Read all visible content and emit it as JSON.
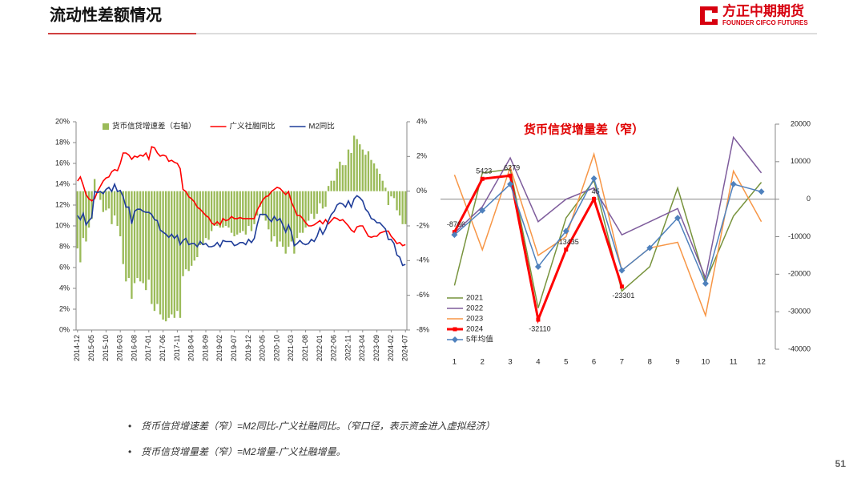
{
  "header": {
    "title": "流动性差额情况",
    "logo": "方正中期期货",
    "logo_sub": "FOUNDER CIFCO FUTURES"
  },
  "chart_data": [
    {
      "type": "bar_line",
      "categories": [
        "2014-12",
        null,
        null,
        null,
        null,
        "2015-05",
        null,
        null,
        null,
        null,
        "2015-10",
        null,
        null,
        null,
        null,
        "2016-03",
        null,
        null,
        null,
        null,
        "2016-08",
        null,
        null,
        null,
        null,
        "2017-01",
        null,
        null,
        null,
        null,
        "2017-06",
        null,
        null,
        null,
        null,
        "2017-11",
        null,
        null,
        null,
        null,
        "2018-04",
        null,
        null,
        null,
        null,
        "2018-09",
        null,
        null,
        null,
        null,
        "2019-02",
        null,
        null,
        null,
        null,
        "2019-07",
        null,
        null,
        null,
        null,
        "2019-12",
        null,
        null,
        null,
        null,
        "2020-05",
        null,
        null,
        null,
        null,
        "2020-10",
        null,
        null,
        null,
        null,
        "2021-03",
        null,
        null,
        null,
        null,
        "2021-08",
        null,
        null,
        null,
        null,
        "2022-01",
        null,
        null,
        null,
        null,
        "2022-06",
        null,
        null,
        null,
        null,
        "2022-11",
        null,
        null,
        null,
        null,
        "2023-04",
        null,
        null,
        null,
        null,
        "2023-09",
        null,
        null,
        null,
        null,
        "2024-02",
        null,
        null,
        null,
        null,
        "2024-07"
      ],
      "series": [
        {
          "name": "货币信贷增速差（右轴）",
          "type": "bar",
          "axis": "y2",
          "color": "#9bbb59",
          "values": [
            -3.3,
            -4.1,
            -2.7,
            -2.9,
            -2.1,
            -1.6,
            0.7,
            -0.1,
            -0.5,
            -1.2,
            -1.1,
            -1.0,
            -1.9,
            -1.4,
            -2.0,
            -2.6,
            -4.2,
            -5.2,
            -5.0,
            -6.2,
            -5.3,
            -5.0,
            -5.2,
            -5.3,
            -5.7,
            -5.1,
            -6.5,
            -6.9,
            -6.5,
            -7.1,
            -7.4,
            -7.5,
            -7.3,
            -7.1,
            -7.3,
            -6.9,
            -7.3,
            -4.9,
            -4.5,
            -4.6,
            -4.3,
            -4.0,
            -3.8,
            -3.1,
            -3.1,
            -2.7,
            -2.8,
            -2.3,
            -2.0,
            -2.0,
            -2.1,
            -2.1,
            -2.0,
            -2.1,
            -2.4,
            -2.6,
            -2.5,
            -2.4,
            -2.3,
            -2.5,
            -2.0,
            -2.3,
            -1.9,
            -1.4,
            -0.9,
            -1.4,
            -1.7,
            -2.2,
            -2.9,
            -2.6,
            -3.2,
            -2.9,
            -3.2,
            -3.6,
            -3.2,
            -2.9,
            -3.6,
            -2.7,
            -2.4,
            -2.4,
            -2.1,
            -1.7,
            -1.3,
            -1.6,
            -1.3,
            -0.7,
            -1.0,
            -0.9,
            0.3,
            0.6,
            0.6,
            1.3,
            1.7,
            1.5,
            1.5,
            2.4,
            2.2,
            3.2,
            3.0,
            2.7,
            2.4,
            2.1,
            2.3,
            1.8,
            1.6,
            1.3,
            1.0,
            0.6,
            0.2,
            -0.8,
            -0.3,
            -0.4,
            -1.1,
            -1.4,
            -1.9,
            -1.9
          ]
        },
        {
          "name": "广义社融同比",
          "type": "line",
          "color": "#ff0000",
          "values": [
            14.3,
            14.7,
            13.9,
            13.0,
            12.6,
            12.4,
            12.6,
            13.3,
            13.8,
            14.3,
            14.6,
            14.7,
            15.2,
            15.4,
            15.3,
            16.0,
            17.0,
            17.0,
            16.8,
            16.4,
            16.7,
            16.6,
            16.8,
            16.7,
            17.0,
            16.4,
            17.6,
            17.5,
            17.0,
            16.7,
            16.8,
            16.7,
            16.2,
            16.3,
            16.1,
            16.0,
            15.5,
            13.5,
            13.3,
            12.8,
            12.6,
            12.3,
            11.8,
            11.6,
            11.3,
            11.0,
            10.8,
            10.3,
            10.1,
            10.4,
            10.1,
            10.7,
            10.5,
            10.6,
            10.9,
            10.7,
            10.7,
            10.8,
            10.7,
            10.7,
            10.7,
            10.7,
            10.7,
            11.5,
            12.0,
            12.5,
            12.8,
            12.9,
            13.3,
            13.5,
            13.7,
            13.6,
            13.3,
            13.0,
            13.3,
            12.3,
            11.7,
            11.0,
            11.0,
            10.7,
            10.3,
            10.0,
            10.0,
            10.1,
            10.3,
            10.5,
            10.2,
            10.6,
            10.2,
            10.5,
            10.8,
            10.7,
            10.5,
            10.6,
            10.3,
            10.0,
            9.6,
            9.4,
            9.9,
            10.0,
            10.0,
            9.5,
            9.0,
            8.9,
            9.0,
            9.0,
            9.3,
            9.4,
            9.5,
            9.5,
            9.0,
            8.7,
            8.3,
            8.4,
            8.1,
            8.2
          ]
        },
        {
          "name": "M2同比",
          "type": "line",
          "color": "#1f3d99",
          "values": [
            11.0,
            10.6,
            11.2,
            10.1,
            10.5,
            10.8,
            13.3,
            13.2,
            13.3,
            13.1,
            13.5,
            13.7,
            13.3,
            14.0,
            13.3,
            13.4,
            12.8,
            11.8,
            11.8,
            10.2,
            11.4,
            11.6,
            11.6,
            11.4,
            11.3,
            11.3,
            11.1,
            10.6,
            10.5,
            9.6,
            9.4,
            9.2,
            8.9,
            9.2,
            8.8,
            9.1,
            8.2,
            8.6,
            8.8,
            8.2,
            8.3,
            8.3,
            8.0,
            8.5,
            8.2,
            8.3,
            8.0,
            8.0,
            8.1,
            8.4,
            8.0,
            8.6,
            8.5,
            8.5,
            8.5,
            8.1,
            8.2,
            8.4,
            8.4,
            8.2,
            8.7,
            8.4,
            8.8,
            10.1,
            11.1,
            11.1,
            11.1,
            10.7,
            10.4,
            10.9,
            10.5,
            10.7,
            10.1,
            9.4,
            10.1,
            9.4,
            8.1,
            8.3,
            8.6,
            8.3,
            8.2,
            8.3,
            8.7,
            8.5,
            9.0,
            9.8,
            9.2,
            9.7,
            10.5,
            11.1,
            11.4,
            12.0,
            12.2,
            12.1,
            11.8,
            12.4,
            11.8,
            12.6,
            12.9,
            12.7,
            12.4,
            11.6,
            11.3,
            10.7,
            10.6,
            10.3,
            10.3,
            10.0,
            9.7,
            8.7,
            8.7,
            8.3,
            7.2,
            7.0,
            6.2,
            6.3
          ]
        }
      ],
      "ylim": [
        0,
        20
      ],
      "yticks": [
        {
          "value": 0,
          "label": "0%"
        },
        {
          "value": 2,
          "label": "2%"
        },
        {
          "value": 4,
          "label": "4%"
        },
        {
          "value": 6,
          "label": "6%"
        },
        {
          "value": 8,
          "label": "8%"
        },
        {
          "value": 10,
          "label": "10%"
        },
        {
          "value": 12,
          "label": "12%"
        },
        {
          "value": 14,
          "label": "14%"
        },
        {
          "value": 16,
          "label": "16%"
        },
        {
          "value": 18,
          "label": "18%"
        },
        {
          "value": 20,
          "label": "20%"
        }
      ],
      "y2lim": [
        -8,
        4
      ],
      "y2ticks": [
        {
          "value": -8,
          "label": "-8%"
        },
        {
          "value": -6,
          "label": "-6%"
        },
        {
          "value": -4,
          "label": "-4%"
        },
        {
          "value": -2,
          "label": "-2%"
        },
        {
          "value": 0,
          "label": "0%"
        },
        {
          "value": 2,
          "label": "2%"
        },
        {
          "value": 4,
          "label": "4%"
        }
      ],
      "legend": "top"
    },
    {
      "type": "line",
      "title": "货币信贷增量差（窄）",
      "categories": [
        1,
        2,
        3,
        4,
        5,
        6,
        7,
        8,
        9,
        10,
        11,
        12
      ],
      "series": [
        {
          "name": "2021",
          "color": "#77933c",
          "values": [
            -23000,
            7000,
            8000,
            -29000,
            -5000,
            5000,
            -24500,
            -18000,
            3000,
            -22000,
            -4500,
            4500
          ]
        },
        {
          "name": "2022",
          "color": "#7e5c9c",
          "values": [
            -9000,
            -2000,
            11000,
            -6000,
            0,
            3000,
            -9500,
            -6000,
            -2500,
            -21000,
            16500,
            7000
          ]
        },
        {
          "name": "2023",
          "color": "#f79646",
          "values": [
            6500,
            -13500,
            8500,
            -15000,
            -10000,
            12000,
            -19000,
            -13000,
            -11500,
            -31000,
            7500,
            -6000
          ]
        },
        {
          "name": "2024",
          "color": "#ff0000",
          "marker": "square",
          "data_labels": true,
          "values": [
            -8766,
            5423,
            6279,
            -32110,
            -13435,
            45,
            -23301,
            null,
            null,
            null,
            null,
            null
          ]
        },
        {
          "name": "5年均值",
          "color": "#4f81bd",
          "marker": "diamond",
          "values": [
            -9500,
            -3000,
            4000,
            -18000,
            -8500,
            5500,
            -19000,
            -13000,
            -5000,
            -22500,
            4000,
            2000
          ]
        }
      ],
      "ylim": [
        -40000,
        20000
      ],
      "yticks": [
        -40000,
        -30000,
        -20000,
        -10000,
        0,
        10000,
        20000
      ],
      "yaxis_position": "right",
      "legend": "lower left"
    }
  ],
  "notes": [
    "货币信贷增速差（窄）=M2同比-广义社融同比。（窄口径，表示资金进入虚拟经济）",
    "货币信贷增量差（窄）=M2增量-广义社融增量。"
  ],
  "page_number": "51"
}
